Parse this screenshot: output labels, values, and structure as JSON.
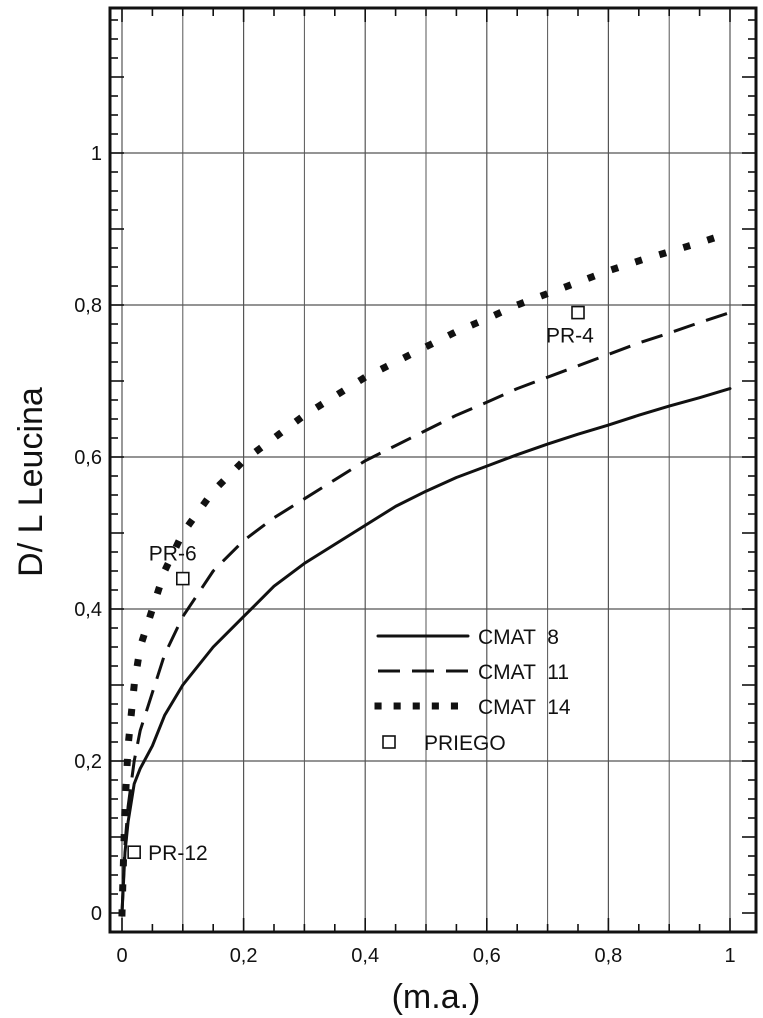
{
  "chart_data": {
    "type": "line",
    "xlabel": "(m.a.)",
    "ylabel": "D/ L  Leucina",
    "xlim": [
      0,
      1
    ],
    "ylim": [
      0,
      1.2
    ],
    "x_ticks": [
      0,
      0.2,
      0.4,
      0.6,
      0.8,
      1
    ],
    "x_tick_labels": [
      "0",
      "0,2",
      "0,4",
      "0,6",
      "0,8",
      "1"
    ],
    "y_ticks": [
      0,
      0.2,
      0.4,
      0.6,
      0.8,
      1
    ],
    "y_tick_labels": [
      "0",
      "0,2",
      "0,4",
      "0,6",
      "0,8",
      "1"
    ],
    "grid": true,
    "legend_position": "lower-right",
    "series": [
      {
        "name": "CMAT  8",
        "style": "solid",
        "x": [
          0,
          0.005,
          0.01,
          0.02,
          0.03,
          0.05,
          0.07,
          0.1,
          0.15,
          0.2,
          0.25,
          0.3,
          0.35,
          0.4,
          0.45,
          0.5,
          0.55,
          0.6,
          0.65,
          0.7,
          0.75,
          0.8,
          0.85,
          0.9,
          0.95,
          1.0
        ],
        "values": [
          0,
          0.08,
          0.12,
          0.17,
          0.19,
          0.22,
          0.26,
          0.3,
          0.35,
          0.39,
          0.43,
          0.46,
          0.485,
          0.51,
          0.535,
          0.555,
          0.573,
          0.588,
          0.603,
          0.617,
          0.63,
          0.642,
          0.655,
          0.667,
          0.678,
          0.69
        ]
      },
      {
        "name": "CMAT  11",
        "style": "dashed",
        "x": [
          0,
          0.005,
          0.01,
          0.02,
          0.03,
          0.05,
          0.07,
          0.1,
          0.15,
          0.2,
          0.25,
          0.3,
          0.35,
          0.4,
          0.45,
          0.5,
          0.55,
          0.6,
          0.65,
          0.7,
          0.75,
          0.8,
          0.85,
          0.9,
          0.95,
          1.0
        ],
        "values": [
          0,
          0.09,
          0.14,
          0.2,
          0.24,
          0.29,
          0.34,
          0.39,
          0.45,
          0.49,
          0.52,
          0.545,
          0.57,
          0.595,
          0.615,
          0.635,
          0.655,
          0.672,
          0.69,
          0.705,
          0.72,
          0.735,
          0.75,
          0.763,
          0.777,
          0.79
        ]
      },
      {
        "name": "CMAT  14",
        "style": "dotted",
        "x": [
          0,
          0.005,
          0.01,
          0.02,
          0.03,
          0.05,
          0.07,
          0.1,
          0.15,
          0.2,
          0.25,
          0.3,
          0.35,
          0.4,
          0.45,
          0.5,
          0.55,
          0.6,
          0.65,
          0.7,
          0.75,
          0.8,
          0.85,
          0.9,
          0.95,
          1.0
        ],
        "values": [
          0,
          0.14,
          0.22,
          0.3,
          0.35,
          0.4,
          0.45,
          0.5,
          0.555,
          0.595,
          0.625,
          0.655,
          0.68,
          0.705,
          0.725,
          0.745,
          0.765,
          0.782,
          0.8,
          0.815,
          0.83,
          0.845,
          0.858,
          0.87,
          0.882,
          0.895
        ]
      }
    ],
    "points": {
      "name": "PRIEGO",
      "items": [
        {
          "label": "PR-4",
          "x": 0.75,
          "y": 0.79
        },
        {
          "label": "PR-6",
          "x": 0.1,
          "y": 0.44
        },
        {
          "label": "PR-12",
          "x": 0.02,
          "y": 0.08
        }
      ]
    }
  }
}
